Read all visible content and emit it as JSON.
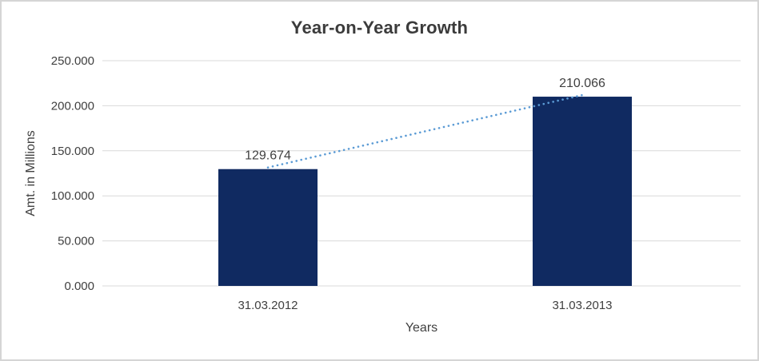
{
  "chart_data": {
    "type": "bar",
    "title": "Year-on-Year Growth",
    "xlabel": "Years",
    "ylabel": "Amt. in Millions",
    "categories": [
      "31.03.2012",
      "31.03.2013"
    ],
    "values": [
      129.674,
      210.066
    ],
    "data_labels": [
      "129.674",
      "210.066"
    ],
    "ylim": [
      0,
      250
    ],
    "yticks": [
      0,
      50,
      100,
      150,
      200,
      250
    ],
    "ytick_labels": [
      "0.000",
      "50.000",
      "100.000",
      "150.000",
      "200.000",
      "250.000"
    ],
    "grid": true,
    "legend_position": "none",
    "trendline": {
      "style": "dotted",
      "color": "#5b9bd5"
    },
    "colors": {
      "bar": "#102a61",
      "grid": "#d9d9d9",
      "text": "#404040",
      "title": "#3b3b3b",
      "frame_border": "#d5d5d5"
    }
  }
}
